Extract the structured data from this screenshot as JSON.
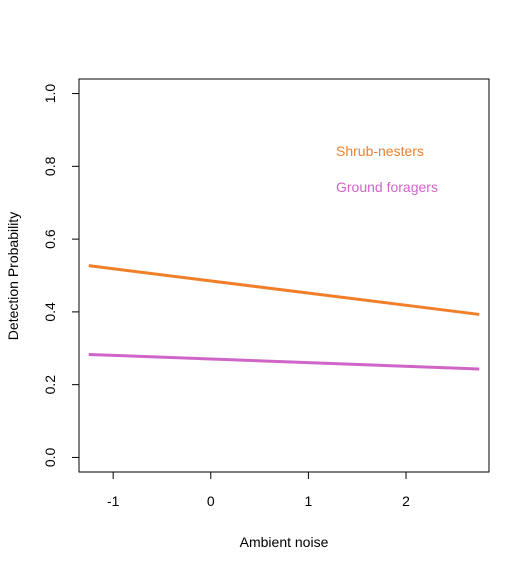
{
  "chart_data": {
    "type": "line",
    "title": "",
    "xlabel": "Ambient noise",
    "ylabel": "Detection Probability",
    "xlim": [
      -1.35,
      2.85
    ],
    "ylim": [
      -0.04,
      1.04
    ],
    "xticks": [
      -1,
      0,
      1,
      2
    ],
    "xtick_labels": [
      "-1",
      "0",
      "1",
      "2"
    ],
    "yticks": [
      0.0,
      0.2,
      0.4,
      0.6,
      0.8,
      1.0
    ],
    "ytick_labels": [
      "0.0",
      "0.2",
      "0.4",
      "0.6",
      "0.8",
      "1.0"
    ],
    "grid": false,
    "legend_placement": "top-right",
    "series": [
      {
        "name": "Shrub-nesters",
        "color": "#F07F2A",
        "x": [
          -1.25,
          2.75
        ],
        "y": [
          0.527,
          0.393
        ]
      },
      {
        "name": "Ground foragers",
        "color": "#D065C9",
        "x": [
          -1.25,
          2.75
        ],
        "y": [
          0.283,
          0.243
        ]
      }
    ]
  }
}
